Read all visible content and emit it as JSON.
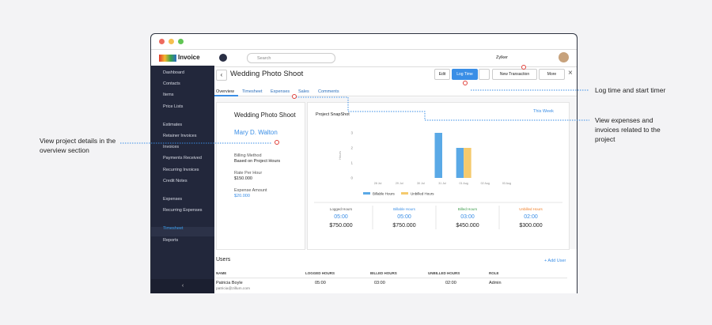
{
  "annotations": [
    "Log time and start timer",
    "View expenses and invoices related to the project",
    "View project details in the overview section"
  ],
  "app": {
    "logo": "Invoice",
    "search": "Search",
    "org": "Zylker"
  },
  "sidebar": [
    "Dashboard",
    "Contacts",
    "Items",
    "Price Lists",
    "Estimates",
    "Retainer Invoices",
    "Invoices",
    "Payments Received",
    "Recurring Invoices",
    "Credit Notes",
    "Expenses",
    "Recurring Expenses",
    "Timesheet",
    "Reports"
  ],
  "header": {
    "title": "Wedding Photo Shoot",
    "buttons": [
      "Edit",
      "Log Time",
      "New Transaction",
      "More"
    ]
  },
  "tabs": [
    "Overview",
    "Timesheet",
    "Expenses",
    "Sales",
    "Comments"
  ],
  "project": {
    "name": "Wedding Photo Shoot",
    "customer": "Mary D. Walton",
    "fields": [
      {
        "label": "Billing Method",
        "value": "Based on Project Hours"
      },
      {
        "label": "Rate Per Hour",
        "value": "$150.000"
      },
      {
        "label": "Expense Amount",
        "value": "$20.000"
      }
    ]
  },
  "snapshot": {
    "title": "Project SnapShot",
    "period": "This Week",
    "y_label": "Hours",
    "chart": {
      "type": "bar",
      "categories": [
        "28 Jul",
        "29 Jul",
        "30 Jul",
        "31 Jul",
        "01 Aug",
        "02 Aug",
        "03 Aug"
      ],
      "series": [
        {
          "name": "Billable Hours",
          "color": "#5aa9e6",
          "values": [
            0,
            0,
            0,
            3,
            2,
            0,
            0
          ]
        },
        {
          "name": "Unbilled Hours",
          "color": "#f5ca6d",
          "values": [
            0,
            0,
            0,
            0,
            2,
            0,
            0
          ]
        }
      ],
      "ylim": [
        0,
        3
      ],
      "yticks": [
        0,
        1,
        2,
        3
      ]
    },
    "summary": [
      {
        "label": "Logged Hours",
        "hours": "05:00",
        "amount": "$750.000"
      },
      {
        "label": "Billable Hours",
        "hours": "05:00",
        "amount": "$750.000"
      },
      {
        "label": "Billed Hours",
        "hours": "03:00",
        "amount": "$450.000"
      },
      {
        "label": "Unbilled Hours",
        "hours": "02:00",
        "amount": "$300.000"
      }
    ]
  },
  "users": {
    "title": "Users",
    "add": "+ Add User",
    "columns": [
      "NAME",
      "LOGGED HOURS",
      "BILLED HOURS",
      "UNBILLED HOURS",
      "ROLE"
    ],
    "rows": [
      {
        "name": "Patricia Boyle",
        "email": "patricia@zillum.com",
        "logged": "05:00",
        "billed": "03:00",
        "unbilled": "02:00",
        "role": "Admin"
      }
    ]
  }
}
